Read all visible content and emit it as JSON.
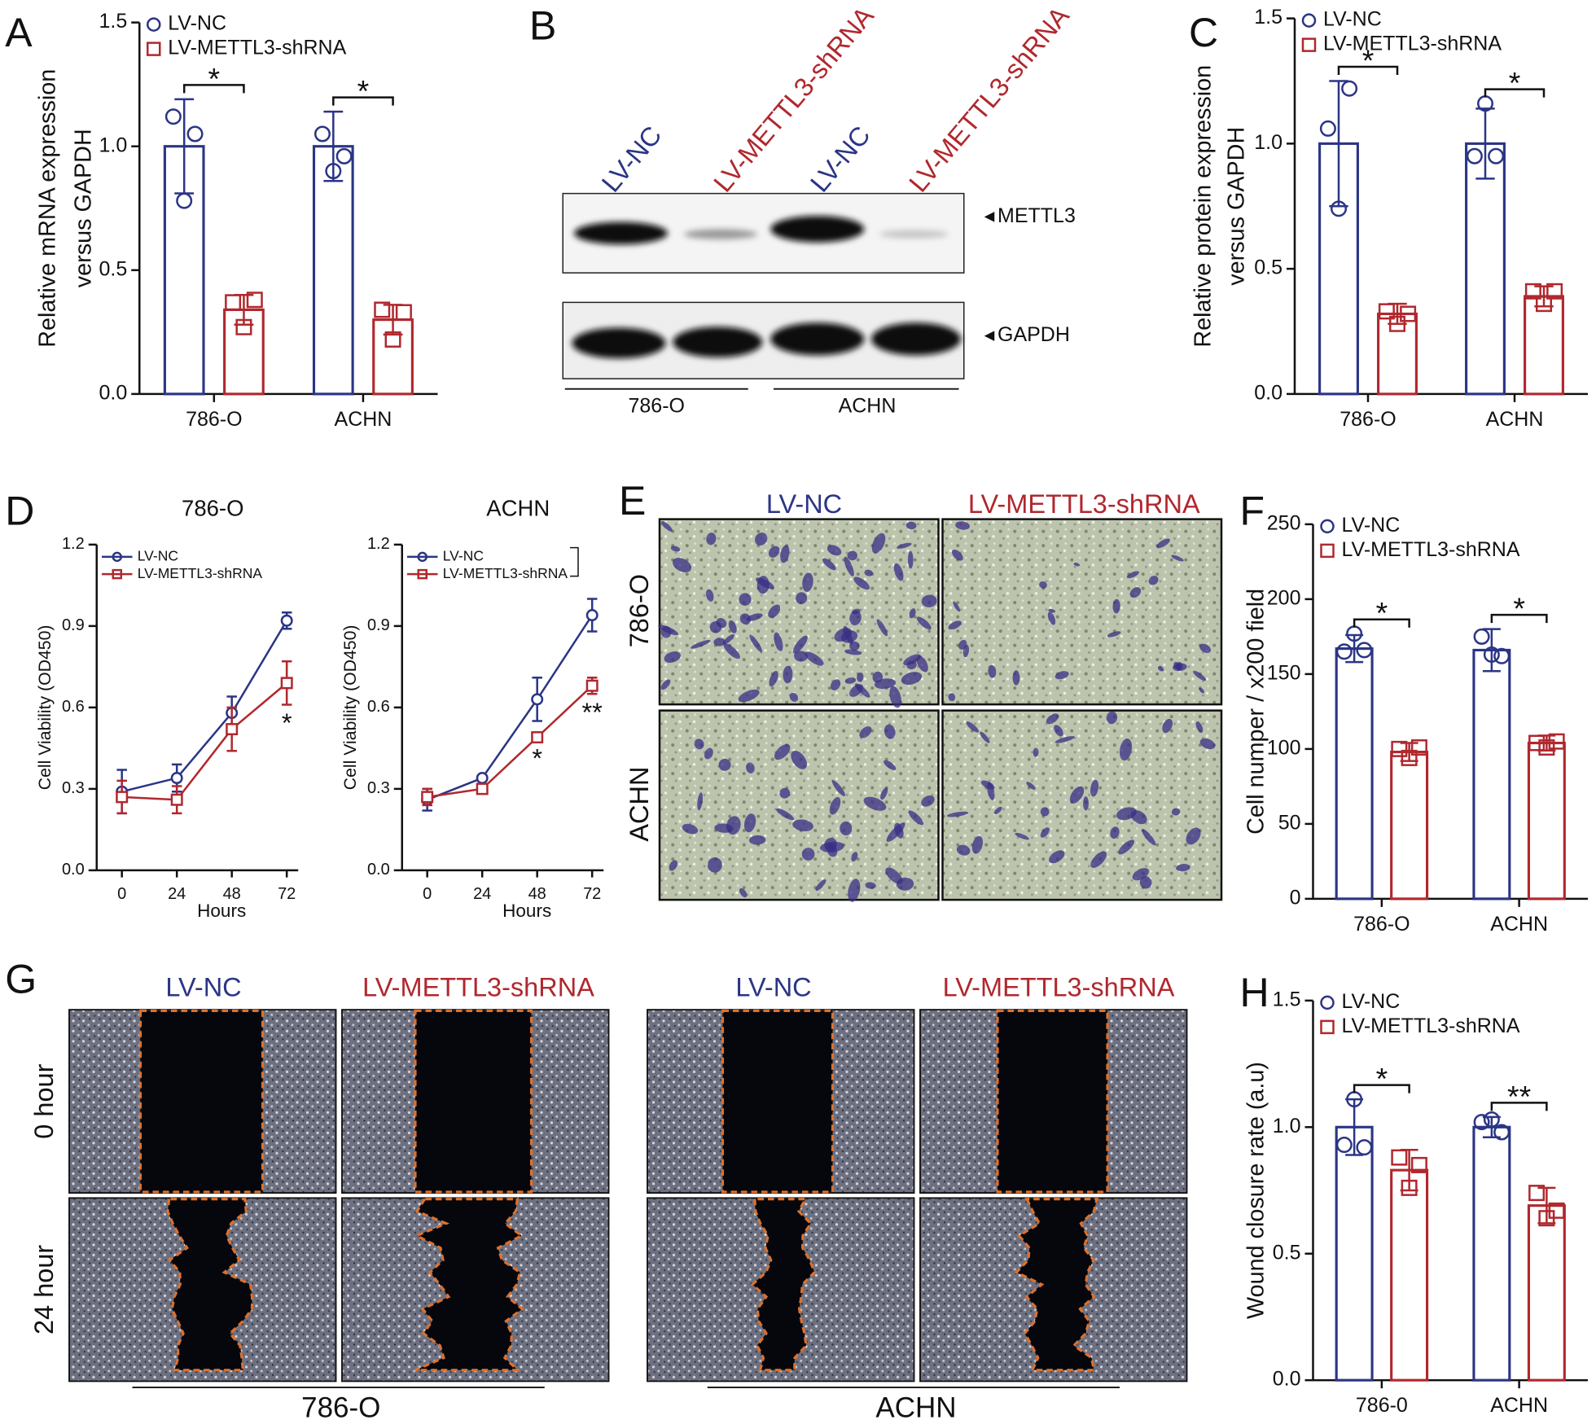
{
  "chart_data": [
    {
      "type": "bar",
      "panel_label": "A",
      "ylabel": [
        "Relative mRNA expression",
        "versus GAPDH"
      ],
      "categories": [
        "786-O",
        "ACHN"
      ],
      "series": [
        {
          "name": "LV-NC",
          "color": "#2b3585",
          "marker": "circle",
          "values": [
            1.0,
            1.0
          ],
          "errors": [
            0.19,
            0.14
          ],
          "points": [
            [
              1.12,
              1.05,
              0.78
            ],
            [
              1.05,
              0.96,
              0.9
            ]
          ]
        },
        {
          "name": "LV-METTL3-shRNA",
          "color": "#b0282e",
          "marker": "square",
          "values": [
            0.34,
            0.3
          ],
          "errors": [
            0.06,
            0.06
          ],
          "points": [
            [
              0.37,
              0.38,
              0.27
            ],
            [
              0.34,
              0.33,
              0.22
            ]
          ]
        }
      ],
      "annotations": [
        "*",
        "*"
      ],
      "ylim": [
        0,
        1.5
      ],
      "yticks": [
        {
          "value": 0,
          "label": "0.0"
        },
        0.5,
        {
          "value": 1,
          "label": "1.0"
        },
        1.5
      ],
      "legend": "upper left"
    },
    {
      "type": "bar",
      "panel_label": "C",
      "ylabel": [
        "Relative protein expression",
        "versus GAPDH"
      ],
      "categories": [
        "786-O",
        "ACHN"
      ],
      "series": [
        {
          "name": "LV-NC",
          "color": "#2b3585",
          "marker": "circle",
          "values": [
            1.0,
            1.0
          ],
          "errors": [
            0.25,
            0.14
          ],
          "points": [
            [
              1.06,
              1.22,
              0.74
            ],
            [
              0.95,
              0.95,
              1.16
            ]
          ]
        },
        {
          "name": "LV-METTL3-shRNA",
          "color": "#b0282e",
          "marker": "square",
          "values": [
            0.32,
            0.39
          ],
          "errors": [
            0.04,
            0.04
          ],
          "points": [
            [
              0.33,
              0.32,
              0.28
            ],
            [
              0.41,
              0.41,
              0.36
            ]
          ]
        }
      ],
      "annotations": [
        "*",
        "*"
      ],
      "ylim": [
        0,
        1.5
      ],
      "yticks": [
        {
          "value": 0,
          "label": "0.0"
        },
        0.5,
        {
          "value": 1,
          "label": "1.0"
        },
        1.5
      ],
      "legend": "upper left"
    },
    {
      "type": "line",
      "panel_label": "D",
      "title": "786-O",
      "xlabel": "Hours",
      "ylabel": "Cell Viability (OD450)",
      "x": [
        0,
        24,
        48,
        72
      ],
      "xlim": [
        -11,
        77
      ],
      "xticks": [
        0,
        24,
        48,
        72
      ],
      "ylim": [
        0,
        1.2
      ],
      "yticks": [
        {
          "value": 0,
          "label": "0.0"
        },
        0.3,
        0.6,
        0.9,
        1.2
      ],
      "series": [
        {
          "name": "LV-NC",
          "color": "#2b3585",
          "marker": "circle",
          "values": [
            0.29,
            0.34,
            0.58,
            0.92
          ],
          "errors": [
            0.08,
            0.05,
            0.06,
            0.03
          ]
        },
        {
          "name": "LV-METTL3-shRNA",
          "color": "#b0282e",
          "marker": "square",
          "values": [
            0.27,
            0.26,
            0.52,
            0.69
          ],
          "errors": [
            0.06,
            0.05,
            0.08,
            0.08
          ]
        }
      ],
      "annotations": [
        null,
        null,
        null,
        "*"
      ],
      "legend": "upper left"
    },
    {
      "type": "line",
      "title": "ACHN",
      "xlabel": "Hours",
      "ylabel": "Cell Viability (OD450)",
      "x": [
        0,
        24,
        48,
        72
      ],
      "xlim": [
        -11,
        77
      ],
      "xticks": [
        0,
        24,
        48,
        72
      ],
      "ylim": [
        0,
        1.2
      ],
      "yticks": [
        {
          "value": 0,
          "label": "0.0"
        },
        0.3,
        0.6,
        0.9,
        1.2
      ],
      "series": [
        {
          "name": "LV-NC",
          "color": "#2b3585",
          "marker": "circle",
          "values": [
            0.26,
            0.34,
            0.63,
            0.94
          ],
          "errors": [
            0.04,
            0.01,
            0.08,
            0.06
          ]
        },
        {
          "name": "LV-METTL3-shRNA",
          "color": "#b0282e",
          "marker": "square",
          "values": [
            0.27,
            0.3,
            0.49,
            0.68
          ],
          "errors": [
            0.03,
            0.01,
            0.01,
            0.03
          ]
        }
      ],
      "annotations": [
        null,
        null,
        "*",
        "**"
      ],
      "legend": "upper left"
    },
    {
      "type": "bar",
      "panel_label": "F",
      "ylabel": [
        "Cell numper / x200 field"
      ],
      "categories": [
        "786-O",
        "ACHN"
      ],
      "series": [
        {
          "name": "LV-NC",
          "color": "#2b3585",
          "marker": "circle",
          "values": [
            167,
            166
          ],
          "errors": [
            9,
            14
          ],
          "points": [
            [
              165,
              166,
              177
            ],
            [
              175,
              162,
              163
            ]
          ]
        },
        {
          "name": "LV-METTL3-shRNA",
          "color": "#b0282e",
          "marker": "square",
          "values": [
            98,
            104
          ],
          "errors": [
            6,
            5
          ],
          "points": [
            [
              100,
              101,
              94
            ],
            [
              104,
              105,
              101
            ]
          ]
        }
      ],
      "annotations": [
        "*",
        "*"
      ],
      "ylim": [
        0,
        250
      ],
      "yticks": [
        0,
        50,
        100,
        150,
        200,
        250
      ],
      "legend": "upper left"
    },
    {
      "type": "bar",
      "panel_label": "H",
      "ylabel": [
        "Wound closure rate (a.u)"
      ],
      "categories": [
        "786-0",
        "ACHN"
      ],
      "series": [
        {
          "name": "LV-NC",
          "color": "#2b3585",
          "marker": "circle",
          "values": [
            1.0,
            1.0
          ],
          "errors": [
            0.11,
            0.04
          ],
          "points": [
            [
              0.93,
              0.92,
              1.11
            ],
            [
              1.02,
              0.98,
              1.03
            ]
          ]
        },
        {
          "name": "LV-METTL3-shRNA",
          "color": "#b0282e",
          "marker": "square",
          "values": [
            0.83,
            0.69
          ],
          "errors": [
            0.08,
            0.07
          ],
          "points": [
            [
              0.88,
              0.85,
              0.76
            ],
            [
              0.74,
              0.67,
              0.64
            ]
          ]
        }
      ],
      "annotations": [
        "*",
        "**"
      ],
      "ylim": [
        0,
        1.5
      ],
      "yticks": [
        {
          "value": 0,
          "label": "0.0"
        },
        0.5,
        {
          "value": 1,
          "label": "1.0"
        },
        1.5
      ],
      "legend": "upper left"
    }
  ],
  "blot": {
    "panel_label": "B",
    "lanes": [
      "LV-NC",
      "LV-METTL3-shRNA",
      "LV-NC",
      "LV-METTL3-shRNA"
    ],
    "bands": [
      "METTL3",
      "GAPDH"
    ],
    "groups": [
      "786-O",
      "ACHN"
    ]
  },
  "transwell": {
    "panel_label": "E",
    "columns": [
      "LV-NC",
      "LV-METTL3-shRNA"
    ],
    "rows": [
      "786-O",
      "ACHN"
    ]
  },
  "wound": {
    "panel_label": "G",
    "columns": [
      "LV-NC",
      "LV-METTL3-shRNA",
      "LV-NC",
      "LV-METTL3-shRNA"
    ],
    "rows": [
      "0 hour",
      "24 hour"
    ],
    "groups": [
      "786-O",
      "ACHN"
    ]
  }
}
